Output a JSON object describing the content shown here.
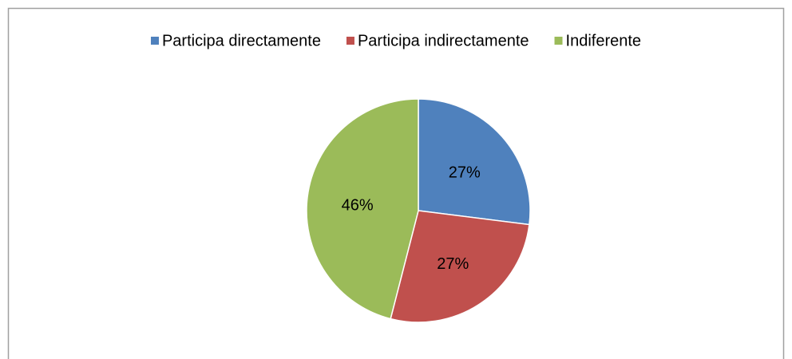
{
  "chart_data": {
    "type": "pie",
    "categories": [
      "Participa directamente",
      "Participa indirectamente",
      "Indiferente"
    ],
    "values": [
      27,
      27,
      46
    ],
    "value_labels": [
      "27%",
      "27%",
      "46%"
    ],
    "colors": [
      "#4f81bd",
      "#c0504d",
      "#9bbb59"
    ],
    "legend": "top"
  }
}
